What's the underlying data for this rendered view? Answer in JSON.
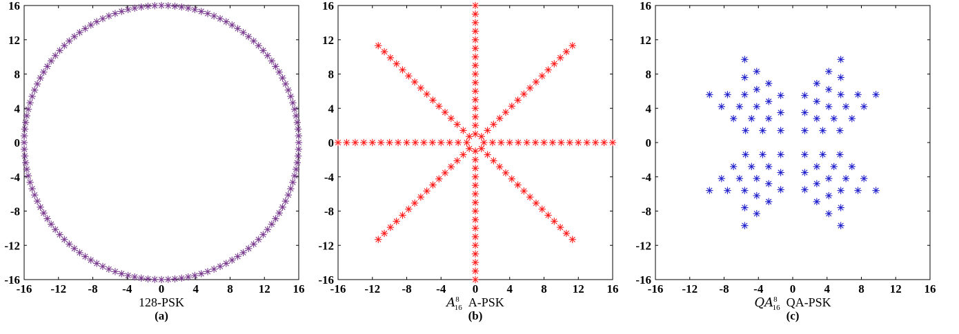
{
  "colors": {
    "purple": "#7a3b8f",
    "red": "#ff1a1a",
    "blue": "#1f1fcc"
  },
  "chart_data": [
    {
      "type": "scatter",
      "marker": "asterisk",
      "constellation": "128-PSK",
      "xlabel": "128-PSK",
      "subcaption": "(a)",
      "xlim": [
        -16,
        16
      ],
      "ylim": [
        -16,
        16
      ],
      "xticks": [
        -16,
        -12,
        -8,
        -4,
        0,
        4,
        8,
        12,
        16
      ],
      "yticks": [
        -16,
        -12,
        -8,
        -4,
        0,
        4,
        8,
        12,
        16
      ],
      "tick_labels": [
        "-16",
        "-12",
        "-8",
        "-4",
        "0",
        "4",
        "8",
        "12",
        "16"
      ],
      "color": "#7a3b8f",
      "points_count": 128,
      "radius": 16,
      "phase_offset_deg": 0
    },
    {
      "type": "scatter",
      "marker": "asterisk",
      "constellation": "A-PSK",
      "xlabel_math_base": "A",
      "xlabel_math_sub": "16",
      "xlabel_math_sup": "8",
      "xlabel_text": "A-PSK",
      "subcaption": "(b)",
      "xlim": [
        -16,
        16
      ],
      "ylim": [
        -16,
        16
      ],
      "xticks": [
        -16,
        -12,
        -8,
        -4,
        0,
        4,
        8,
        12,
        16
      ],
      "yticks": [
        -16,
        -12,
        -8,
        -4,
        0,
        4,
        8,
        12,
        16
      ],
      "tick_labels": [
        "-16",
        "-12",
        "-8",
        "-4",
        "0",
        "4",
        "8",
        "12",
        "16"
      ],
      "color": "#ff1a1a",
      "rings": 16,
      "points_per_ring": 8,
      "ring_spacing": 1,
      "phase_offset_deg": 0
    },
    {
      "type": "scatter",
      "marker": "asterisk",
      "constellation": "QA-PSK",
      "xlabel_math_base": "QA",
      "xlabel_math_sub": "16",
      "xlabel_math_sup": "8",
      "xlabel_text": "QA-PSK",
      "subcaption": "(c)",
      "xlim": [
        -16,
        16
      ],
      "ylim": [
        -16,
        16
      ],
      "xticks": [
        -16,
        -12,
        -8,
        -4,
        0,
        4,
        8,
        12,
        16
      ],
      "yticks": [
        -16,
        -12,
        -8,
        -4,
        0,
        4,
        8,
        12,
        16
      ],
      "tick_labels": [
        "-16",
        "-12",
        "-8",
        "-4",
        "0",
        "4",
        "8",
        "12",
        "16"
      ],
      "color": "#1f1fcc",
      "inner_corner_points": [
        [
          1.414,
          1.414
        ],
        [
          1.414,
          3.414
        ],
        [
          3.414,
          1.414
        ]
      ],
      "points_per_point_ring": 8,
      "phase_offset_deg": 0,
      "qam4_half_spacing": 1.414,
      "qa_grid": [
        [
          1.4,
          1.4
        ],
        [
          3.5,
          1.4
        ],
        [
          5.5,
          1.4
        ],
        [
          2.8,
          2.8
        ],
        [
          4.8,
          2.8
        ],
        [
          6.9,
          2.8
        ],
        [
          4.2,
          4.2
        ],
        [
          6.2,
          4.2
        ],
        [
          8.3,
          4.2
        ],
        [
          5.6,
          5.6
        ],
        [
          7.6,
          5.6
        ],
        [
          9.7,
          5.6
        ],
        [
          1.4,
          3.5
        ],
        [
          1.4,
          5.5
        ],
        [
          2.8,
          4.8
        ],
        [
          2.8,
          6.9
        ],
        [
          4.2,
          6.2
        ],
        [
          4.2,
          8.3
        ],
        [
          5.6,
          7.6
        ],
        [
          5.6,
          9.7
        ]
      ]
    }
  ]
}
